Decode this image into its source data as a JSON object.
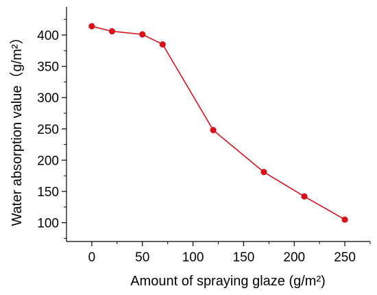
{
  "chart_data": {
    "type": "line",
    "title": "",
    "xlabel": "Amount of spraying glaze (g/m²)",
    "ylabel": "Water absorption value（g/m²）",
    "x": [
      0,
      20,
      50,
      70,
      120,
      170,
      210,
      250
    ],
    "series": [
      {
        "values": [
          414,
          406,
          401,
          385,
          248,
          181,
          142,
          105
        ],
        "color": "#d9111b"
      }
    ],
    "xlim": [
      -25,
      275
    ],
    "ylim": [
      70,
      445
    ],
    "xticks": [
      "0",
      "50",
      "100",
      "150",
      "200",
      "250"
    ],
    "yticks": [
      "100",
      "150",
      "200",
      "250",
      "300",
      "350",
      "400"
    ],
    "grid": false,
    "legend": "none"
  }
}
